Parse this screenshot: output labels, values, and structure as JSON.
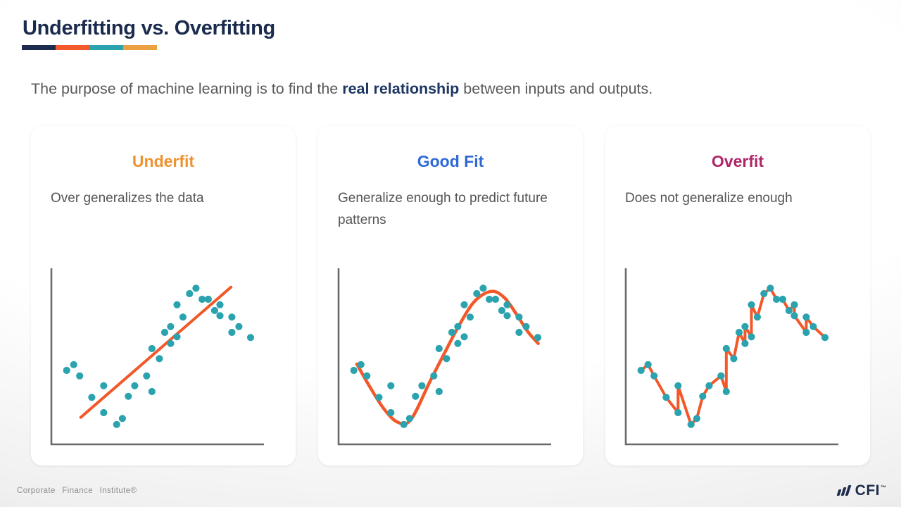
{
  "slide": {
    "title": "Underfitting vs. Overfitting",
    "accent_bar_colors": [
      "#1d2c4e",
      "#f4592b",
      "#2ba3ae",
      "#eda041"
    ],
    "subtitle": {
      "prefix": "The purpose of machine learning is to find the ",
      "bold": "real relationship",
      "suffix": " between inputs and outputs."
    }
  },
  "cards": [
    {
      "title": "Underfit",
      "title_color": "#ee9331",
      "description": "Over generalizes the data"
    },
    {
      "title": "Good Fit",
      "title_color": "#3069d6",
      "description": "Generalize enough to predict future patterns"
    },
    {
      "title": "Overfit",
      "title_color": "#b02568",
      "description": "Does not generalize enough"
    }
  ],
  "chart_data": {
    "type": "scatter",
    "title": "",
    "xlabel": "",
    "ylabel": "",
    "xlim": [
      0,
      100
    ],
    "ylim": [
      0,
      100
    ],
    "grid": false,
    "ticks": false,
    "axis_color": "#6a6a6a",
    "point_color": "#2ba3af",
    "fit_color": "#f2582a",
    "shared_scatter_points_xy": [
      [
        7.2,
        42.0
      ],
      [
        10.5,
        45.3
      ],
      [
        13.3,
        38.9
      ],
      [
        19.0,
        26.7
      ],
      [
        24.6,
        18.0
      ],
      [
        24.6,
        33.3
      ],
      [
        30.7,
        11.3
      ],
      [
        33.4,
        14.7
      ],
      [
        36.2,
        27.3
      ],
      [
        39.2,
        33.3
      ],
      [
        44.8,
        38.9
      ],
      [
        47.3,
        30.0
      ],
      [
        47.3,
        54.4
      ],
      [
        50.8,
        48.7
      ],
      [
        53.3,
        63.6
      ],
      [
        56.1,
        57.3
      ],
      [
        56.1,
        66.9
      ],
      [
        59.1,
        61.1
      ],
      [
        59.1,
        79.3
      ],
      [
        61.9,
        72.3
      ],
      [
        65.0,
        85.6
      ],
      [
        68.0,
        88.7
      ],
      [
        70.9,
        82.4
      ],
      [
        73.8,
        82.4
      ],
      [
        76.8,
        76.0
      ],
      [
        79.3,
        79.3
      ],
      [
        79.3,
        73.1
      ],
      [
        84.9,
        63.6
      ],
      [
        84.9,
        72.3
      ],
      [
        88.2,
        66.9
      ],
      [
        93.7,
        60.7
      ]
    ],
    "panels": [
      {
        "panel_title": "Underfit",
        "fit_type": "line",
        "fit_line_endpoints": [
          [
            13.8,
            15.3
          ],
          [
            84.5,
            89.3
          ]
        ]
      },
      {
        "panel_title": "Good Fit",
        "fit_type": "curve",
        "fit_curve_points": [
          [
            8.6,
            45.6
          ],
          [
            14.4,
            33.3
          ],
          [
            21.0,
            20.7
          ],
          [
            27.6,
            12.7
          ],
          [
            34.0,
            14.0
          ],
          [
            43.1,
            36.0
          ],
          [
            49.9,
            52.0
          ],
          [
            56.9,
            68.0
          ],
          [
            64.0,
            81.3
          ],
          [
            71.8,
            86.9
          ],
          [
            78.0,
            83.3
          ],
          [
            84.0,
            73.3
          ],
          [
            89.0,
            64.0
          ],
          [
            93.9,
            57.3
          ]
        ]
      },
      {
        "panel_title": "Overfit",
        "fit_type": "zigzag",
        "note": "orange line connects every scatter point in listed order"
      }
    ]
  },
  "footer": {
    "left": "Corporate Finance Institute®",
    "logo_icon": "cfi-slanted-bars-icon",
    "logo_text": "CFI",
    "trademark": "™"
  }
}
